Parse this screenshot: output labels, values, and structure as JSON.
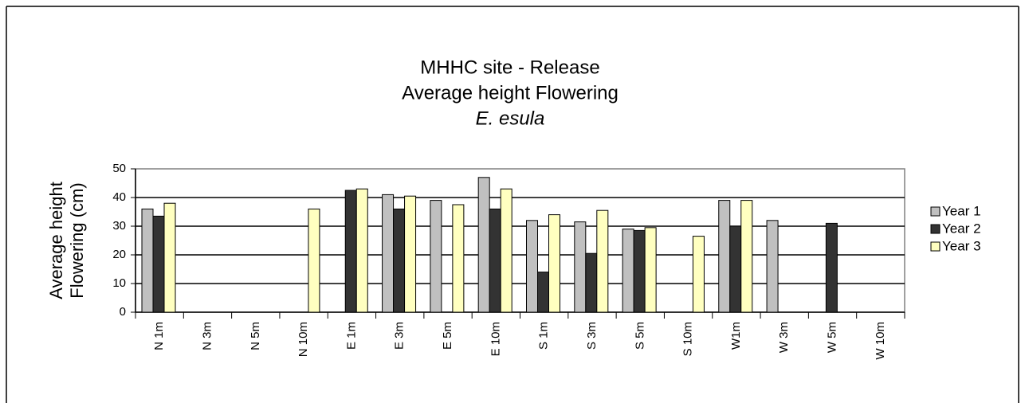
{
  "chart_data": {
    "type": "bar",
    "title": [
      "MHHC site - Release",
      "Average height Flowering",
      "E. esula"
    ],
    "ylabel": [
      "Average height",
      "Flowering (cm)"
    ],
    "categories": [
      "N 1m",
      "N 3m",
      "N 5m",
      "N 10m",
      "E 1m",
      "E 3m",
      "E 5m",
      "E 10m",
      "S 1m",
      "S 3m",
      "S 5m",
      "S 10m",
      "W1m",
      "W 3m",
      "W 5m",
      "W 10m"
    ],
    "series": [
      {
        "name": "Year 1",
        "color": "#c0c0c0",
        "values": [
          36,
          null,
          null,
          null,
          null,
          41,
          39,
          47,
          32,
          31.5,
          29,
          null,
          39,
          32,
          null,
          null
        ]
      },
      {
        "name": "Year 2",
        "color": "#333333",
        "values": [
          33.5,
          null,
          null,
          null,
          42.5,
          36,
          null,
          36,
          14,
          20.5,
          28.5,
          null,
          30,
          null,
          31,
          null
        ]
      },
      {
        "name": "Year 3",
        "color": "#ffffc0",
        "values": [
          38,
          null,
          null,
          36,
          43,
          40.5,
          37.5,
          43,
          34,
          35.5,
          29.5,
          26.5,
          39,
          null,
          null,
          null
        ]
      }
    ],
    "ylim": [
      0,
      50
    ],
    "yticks": [
      0,
      10,
      20,
      30,
      40,
      50
    ],
    "grid": true,
    "legend": "right"
  }
}
